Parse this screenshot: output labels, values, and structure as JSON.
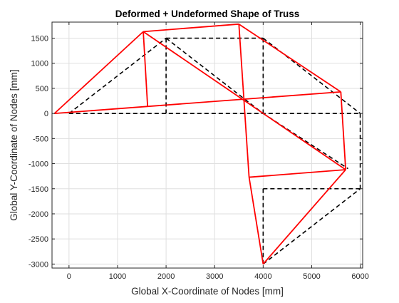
{
  "chart_data": {
    "type": "line",
    "title": "Deformed + Undeformed Shape of Truss",
    "xlabel": "Global X-Coordinate of Nodes [mm]",
    "ylabel": "Global Y-Coordinate of Nodes [mm]",
    "xlim": [
      -350,
      6050
    ],
    "ylim": [
      -3080,
      1820
    ],
    "xticks": [
      0,
      1000,
      2000,
      3000,
      4000,
      5000,
      6000
    ],
    "yticks": [
      -3000,
      -2500,
      -2000,
      -1500,
      -1000,
      -500,
      0,
      500,
      1000,
      1500
    ],
    "grid": true,
    "series": [
      {
        "style": "dashed",
        "color": "#000000",
        "members": [
          [
            [
              0,
              0
            ],
            [
              6000,
              0
            ]
          ],
          [
            [
              0,
              0
            ],
            [
              2000,
              1500
            ]
          ],
          [
            [
              2000,
              1500
            ],
            [
              4000,
              1500
            ]
          ],
          [
            [
              4000,
              1500
            ],
            [
              6000,
              0
            ]
          ],
          [
            [
              2000,
              1500
            ],
            [
              2000,
              0
            ]
          ],
          [
            [
              4000,
              1500
            ],
            [
              4000,
              0
            ]
          ],
          [
            [
              2000,
              1500
            ],
            [
              4000,
              0
            ]
          ],
          [
            [
              4000,
              0
            ],
            [
              5750,
              -1100
            ]
          ],
          [
            [
              6000,
              0
            ],
            [
              6000,
              -1500
            ]
          ],
          [
            [
              4000,
              -1500
            ],
            [
              6000,
              -1500
            ]
          ],
          [
            [
              4000,
              -1500
            ],
            [
              4000,
              -3000
            ]
          ],
          [
            [
              4000,
              -3000
            ],
            [
              6000,
              -1500
            ]
          ]
        ]
      },
      {
        "style": "solid",
        "color": "#ff0000",
        "members": [
          [
            [
              -300,
              0
            ],
            [
              5600,
              430
            ]
          ],
          [
            [
              -300,
              0
            ],
            [
              1530,
              1630
            ]
          ],
          [
            [
              1530,
              1630
            ],
            [
              3500,
              1780
            ]
          ],
          [
            [
              3500,
              1780
            ],
            [
              5600,
              430
            ]
          ],
          [
            [
              1530,
              1630
            ],
            [
              1620,
              130
            ]
          ],
          [
            [
              1530,
              1630
            ],
            [
              5700,
              -1120
            ]
          ],
          [
            [
              3500,
              1780
            ],
            [
              3710,
              -1270
            ]
          ],
          [
            [
              5600,
              430
            ],
            [
              5700,
              -1120
            ]
          ],
          [
            [
              3710,
              -1270
            ],
            [
              5700,
              -1120
            ]
          ],
          [
            [
              3710,
              -1270
            ],
            [
              4000,
              -3000
            ]
          ],
          [
            [
              4000,
              -3000
            ],
            [
              5700,
              -1120
            ]
          ]
        ]
      }
    ]
  }
}
